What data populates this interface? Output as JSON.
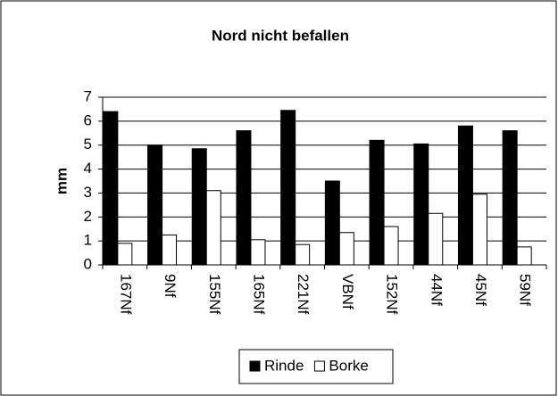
{
  "chart_data": {
    "type": "bar",
    "title": "Nord nicht befallen",
    "y_label": "mm",
    "categories": [
      "167Nf",
      "9Nf",
      "155Nf",
      "165Nf",
      "221Nf",
      "VBNf",
      "152Nf",
      "44Nf",
      "45Nf",
      "59Nf"
    ],
    "series": [
      {
        "name": "Rinde",
        "color": "#000000",
        "values": [
          6.4,
          5.0,
          4.85,
          5.6,
          6.45,
          3.5,
          5.2,
          5.05,
          5.8,
          5.6
        ]
      },
      {
        "name": "Borke",
        "color": "#ffffff",
        "values": [
          0.9,
          1.25,
          3.1,
          1.05,
          0.85,
          1.35,
          1.6,
          2.15,
          2.95,
          0.75
        ]
      }
    ],
    "ylim": [
      0,
      7
    ],
    "yticks": [
      0,
      1,
      2,
      3,
      4,
      5,
      6,
      7
    ],
    "grid": true,
    "legend": "bottom"
  }
}
